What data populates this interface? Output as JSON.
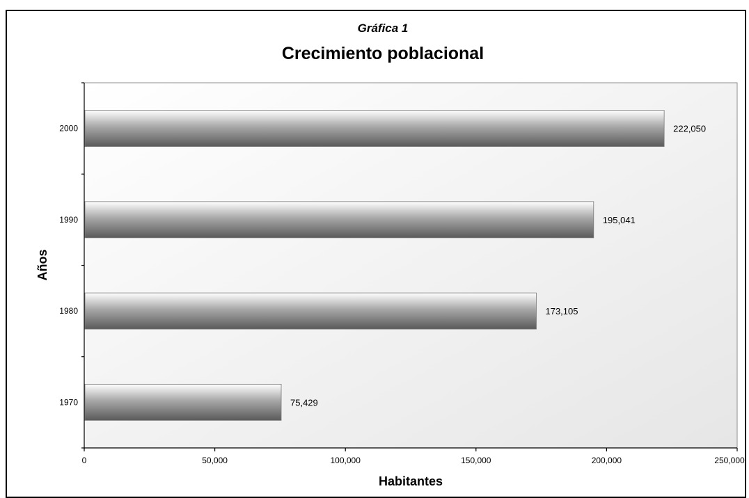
{
  "chart_data": {
    "type": "bar",
    "orientation": "horizontal",
    "subtitle": "Gráfica 1",
    "title": "Crecimiento poblacional",
    "xlabel": "Habitantes",
    "ylabel": "Años",
    "categories": [
      "1970",
      "1980",
      "1990",
      "2000"
    ],
    "values": [
      75429,
      173105,
      195041,
      222050
    ],
    "value_labels": [
      "75,429",
      "173,105",
      "195,041",
      "222,050"
    ],
    "xlim": [
      0,
      250000
    ],
    "x_ticks": [
      0,
      50000,
      100000,
      150000,
      200000,
      250000
    ],
    "x_tick_labels": [
      "0",
      "50,000",
      "100,000",
      "150,000",
      "200,000",
      "250,000"
    ],
    "grid": false,
    "legend": "none",
    "colors": {
      "plot_background_light": "#ffffff",
      "plot_background_dark": "#e6e6e6",
      "bar_light": "#ffffff",
      "bar_mid": "#a8a8a8",
      "bar_dark": "#5a5a5a"
    }
  }
}
